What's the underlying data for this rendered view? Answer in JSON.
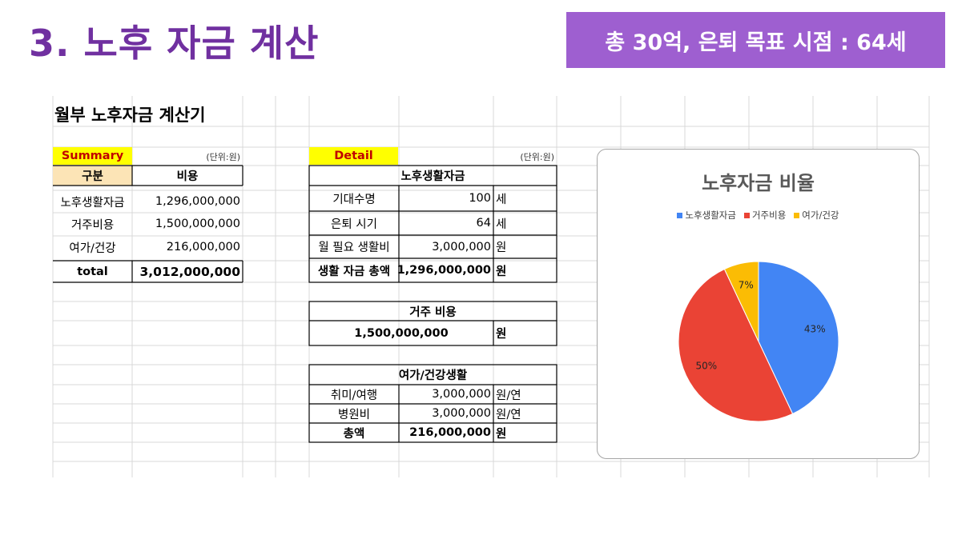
{
  "slide": {
    "title": "3. 노후 자금 계산",
    "badge": "총 30억, 은퇴 목표 시점 : 64세"
  },
  "calculator": {
    "title": "월부 노후자금 계산기"
  },
  "summary": {
    "label": "Summary",
    "unit": "(단위:원)",
    "headers": [
      "구분",
      "비용"
    ],
    "rows": [
      {
        "name": "노후생활자금",
        "value": "1,296,000,000"
      },
      {
        "name": "거주비용",
        "value": "1,500,000,000"
      },
      {
        "name": "여가/건강",
        "value": "216,000,000"
      }
    ],
    "total": {
      "name": "total",
      "value": "3,012,000,000"
    }
  },
  "detail": {
    "label": "Detail",
    "unit": "(단위:원)",
    "living": {
      "header": "노후생활자금",
      "rows": [
        {
          "name": "기대수명",
          "value": "100",
          "unit": "세"
        },
        {
          "name": "은퇴 시기",
          "value": "64",
          "unit": "세"
        },
        {
          "name": "월 필요 생활비",
          "value": "3,000,000",
          "unit": "원"
        },
        {
          "name": "생활 자금 총액",
          "value": "1,296,000,000",
          "unit": "원"
        }
      ]
    },
    "housing": {
      "header": "거주 비용",
      "value": "1,500,000,000",
      "unit": "원"
    },
    "leisure": {
      "header": "여가/건강생활",
      "rows": [
        {
          "name": "취미/여행",
          "value": "3,000,000",
          "unit": "원/연"
        },
        {
          "name": "병원비",
          "value": "3,000,000",
          "unit": "원/연"
        },
        {
          "name": "총액",
          "value": "216,000,000",
          "unit": "원"
        }
      ]
    }
  },
  "chart_data": {
    "type": "pie",
    "title": "노후자금 비율",
    "legend_position": "top",
    "categories": [
      "노후생활자금",
      "거주비용",
      "여가/건강"
    ],
    "values": [
      43,
      50,
      7
    ],
    "labels": [
      "43%",
      "50%",
      "7%"
    ],
    "colors": [
      "#4285f4",
      "#ea4335",
      "#fbbc04"
    ]
  },
  "colors": {
    "title": "#7030a0",
    "badge_bg": "#9e5fd0",
    "label_highlight": "#ffff00",
    "header_fill": "#fce4b6"
  }
}
